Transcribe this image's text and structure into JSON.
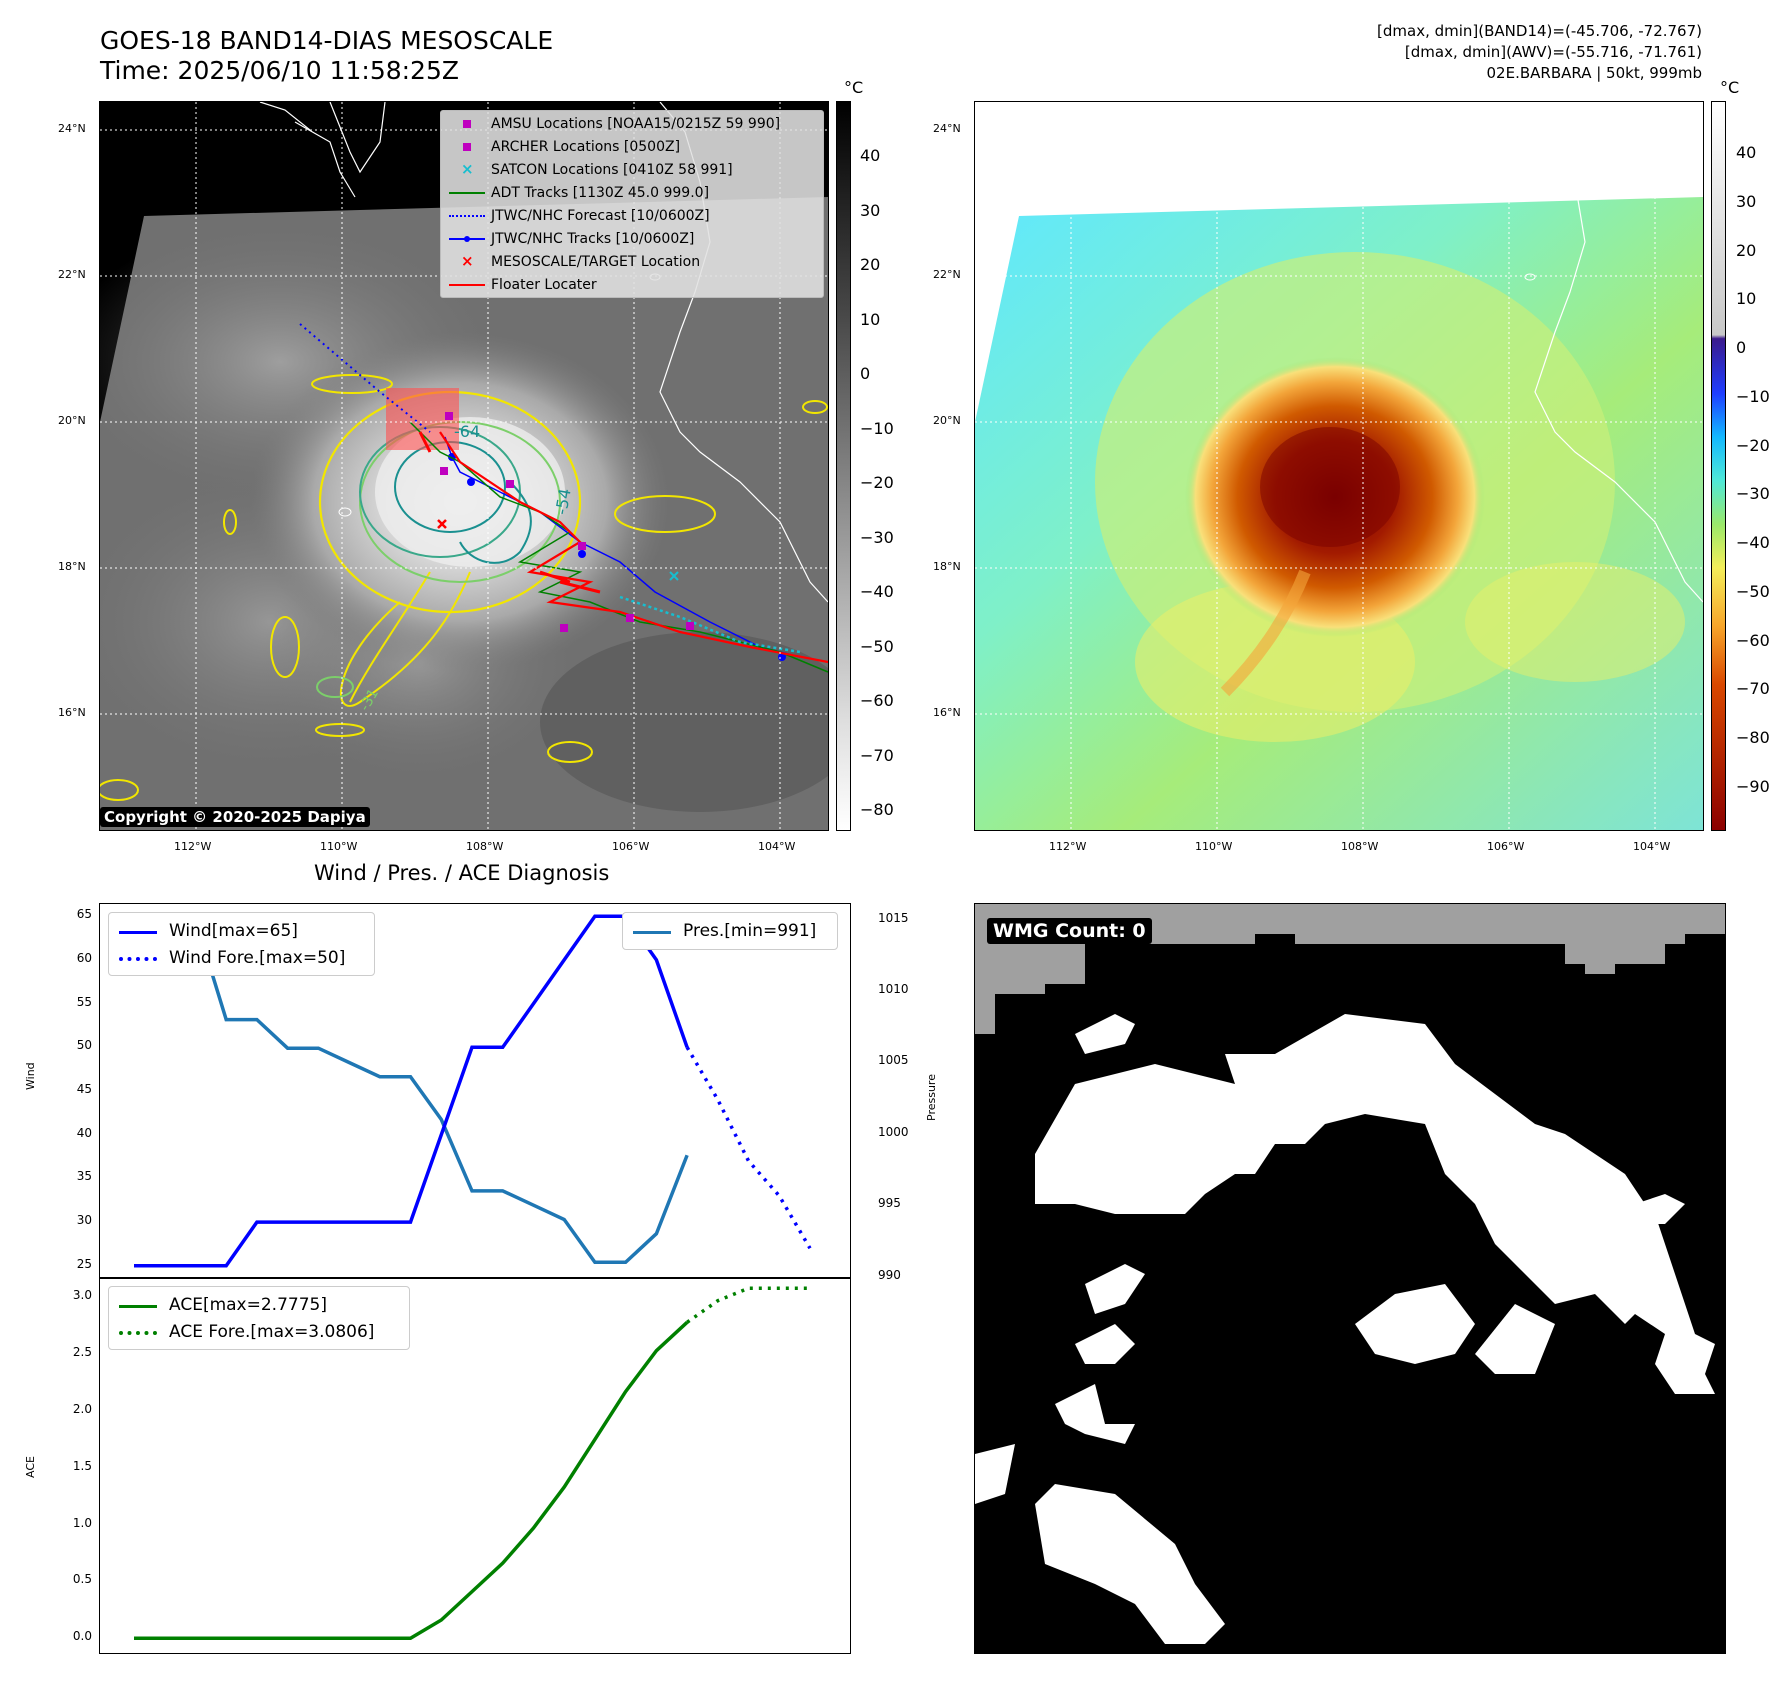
{
  "header": {
    "title_line1": "GOES-18 BAND14-DIAS MESOSCALE",
    "title_line2": "Time: 2025/06/10 11:58:25Z",
    "info_line1": "[dmax, dmin](BAND14)=(-45.706, -72.767)",
    "info_line2": "[dmax, dmin](AWV)=(-55.716, -71.761)",
    "info_line3": "02E.BARBARA | 50kt, 999mb"
  },
  "map": {
    "lat_labels": [
      "24°N",
      "22°N",
      "20°N",
      "18°N",
      "16°N"
    ],
    "lon_labels": [
      "112°W",
      "110°W",
      "108°W",
      "106°W",
      "104°W"
    ],
    "copyright": "Copyright © 2020-2025 Dapiya",
    "contour_labels": [
      "-64",
      "-54",
      "-31"
    ],
    "colorbar_unit": "°C"
  },
  "band14_colorbar": {
    "ticks": [
      "40",
      "30",
      "20",
      "10",
      "0",
      "−10",
      "−20",
      "−30",
      "−40",
      "−50",
      "−60",
      "−70",
      "−80"
    ],
    "unit": "°C"
  },
  "awv_colorbar": {
    "ticks": [
      "40",
      "30",
      "20",
      "10",
      "0",
      "−10",
      "−20",
      "−30",
      "−40",
      "−50",
      "−60",
      "−70",
      "−80",
      "−90"
    ],
    "unit": "°C"
  },
  "map_legend": [
    {
      "label": "AMSU Locations [NOAA15/0215Z 59 990]",
      "symbol": "square",
      "color": "#bf00bf"
    },
    {
      "label": "ARCHER Locations [0500Z]",
      "symbol": "square",
      "color": "#bf00bf"
    },
    {
      "label": "SATCON Locations [0410Z 58 991]",
      "symbol": "x",
      "color": "#17becf"
    },
    {
      "label": "ADT Tracks [1130Z 45.0 999.0]",
      "symbol": "line",
      "color": "#008000"
    },
    {
      "label": "JTWC/NHC Forecast [10/0600Z]",
      "symbol": "dotted",
      "color": "#0000ff"
    },
    {
      "label": "JTWC/NHC Tracks [10/0600Z]",
      "symbol": "line-dot",
      "color": "#0000ff"
    },
    {
      "label": "MESOSCALE/TARGET Location",
      "symbol": "x",
      "color": "#ff0000"
    },
    {
      "label": "Floater Locater",
      "symbol": "line",
      "color": "#ff0000"
    }
  ],
  "diag": {
    "title": "Wind / Pres. / ACE Diagnosis",
    "wind_ylabel": "Wind",
    "pres_ylabel": "Pressure",
    "ace_ylabel": "ACE",
    "legend_wind": "Wind[max=65]",
    "legend_wind_fore": "Wind Fore.[max=50]",
    "legend_pres": "Pres.[min=991]",
    "legend_ace": "ACE[max=2.7775]",
    "legend_ace_fore": "ACE Fore.[max=3.0806]",
    "wind_ticks": [
      "65",
      "60",
      "55",
      "50",
      "45",
      "40",
      "35",
      "30",
      "25"
    ],
    "pres_ticks": [
      "1015",
      "1010",
      "1005",
      "1000",
      "995",
      "990"
    ],
    "ace_ticks": [
      "3.0",
      "2.5",
      "2.0",
      "1.5",
      "1.0",
      "0.5",
      "0.0"
    ]
  },
  "wmg": {
    "label": "WMG Count: 0"
  },
  "chart_data": {
    "type": "line",
    "title": "Wind / Pres. / ACE Diagnosis",
    "x": [
      0,
      1,
      2,
      3,
      4,
      5,
      6,
      7,
      8,
      9,
      10,
      11,
      12,
      13,
      14,
      15,
      16,
      17,
      18,
      19,
      20,
      21,
      22
    ],
    "wind": {
      "ylabel": "Wind",
      "ylim": [
        23.6,
        66.4
      ],
      "series": [
        {
          "name": "Wind[max=65]",
          "color": "#0000ff",
          "x": [
            0,
            1,
            2,
            3,
            4,
            5,
            6,
            7,
            8,
            9,
            10,
            11,
            12,
            13,
            14,
            15,
            16,
            17,
            18
          ],
          "values": [
            25,
            25,
            25,
            25,
            30,
            30,
            30,
            30,
            30,
            30,
            40,
            50,
            50,
            55,
            60,
            65,
            65,
            60,
            50
          ]
        },
        {
          "name": "Wind Fore.[max=50]",
          "color": "#0000ff",
          "dashed": true,
          "x": [
            18,
            19,
            20,
            21,
            22
          ],
          "values": [
            50,
            44,
            37,
            33,
            27
          ]
        }
      ]
    },
    "pressure": {
      "ylabel": "Pressure",
      "ylim": [
        989.9,
        1016.1
      ],
      "series": [
        {
          "name": "Pres.[min=991]",
          "color": "#1f77b4",
          "x": [
            0,
            1,
            2,
            3,
            4,
            5,
            6,
            7,
            8,
            9,
            10,
            11,
            12,
            13,
            14,
            15,
            16,
            17,
            18
          ],
          "values": [
            1015,
            1015,
            1015,
            1008,
            1008,
            1006,
            1006,
            1005,
            1004,
            1004,
            1001,
            996,
            996,
            995,
            994,
            991,
            991,
            993,
            998.5
          ]
        }
      ]
    },
    "ace": {
      "ylabel": "ACE",
      "ylim": [
        -0.13,
        3.17
      ],
      "series": [
        {
          "name": "ACE[max=2.7775]",
          "color": "#008000",
          "x": [
            0,
            1,
            2,
            3,
            4,
            5,
            6,
            7,
            8,
            9,
            10,
            11,
            12,
            13,
            14,
            15,
            16,
            17,
            18
          ],
          "values": [
            0,
            0,
            0,
            0,
            0,
            0,
            0,
            0,
            0,
            0,
            0.16,
            0.41,
            0.66,
            0.97,
            1.33,
            1.75,
            2.17,
            2.53,
            2.78
          ]
        },
        {
          "name": "ACE Fore.[max=3.0806]",
          "color": "#008000",
          "dashed": true,
          "x": [
            18,
            19,
            20,
            21,
            22
          ],
          "values": [
            2.78,
            2.97,
            3.08,
            3.08,
            3.08
          ]
        }
      ]
    }
  }
}
